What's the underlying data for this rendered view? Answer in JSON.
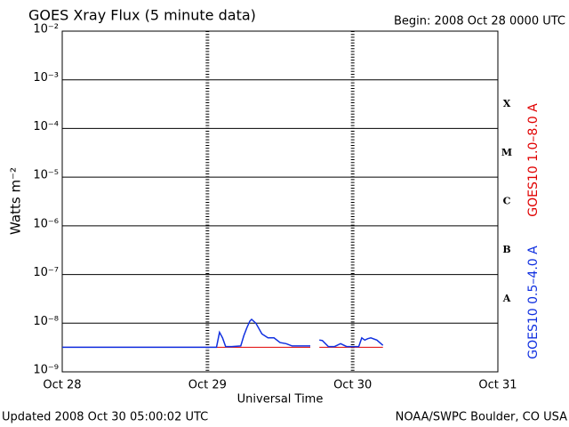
{
  "chart_data": {
    "type": "line",
    "title": "GOES Xray Flux (5 minute data)",
    "subtitle": "Begin:  2008 Oct 28 0000 UTC",
    "y_label": "Watts m⁻²",
    "x_label": "Universal Time",
    "footer_left": "Updated 2008 Oct 30 05:00:02 UTC",
    "footer_right": "NOAA/SWPC Boulder, CO USA",
    "class_labels": [
      "X",
      "M",
      "C",
      "B",
      "A"
    ],
    "log_y": true,
    "grid": true,
    "xlim": [
      0,
      72
    ],
    "xticks": [
      {
        "value": 0,
        "label": "Oct 28"
      },
      {
        "value": 24,
        "label": "Oct 29"
      },
      {
        "value": 48,
        "label": "Oct 30"
      },
      {
        "value": 72,
        "label": "Oct 31"
      }
    ],
    "ylim": [
      1e-09,
      0.01
    ],
    "yticks": [
      {
        "value": 1e-09,
        "label": "10⁻⁹"
      },
      {
        "value": 1e-08,
        "label": "10⁻⁸"
      },
      {
        "value": 1e-07,
        "label": "10⁻⁷"
      },
      {
        "value": 1e-06,
        "label": "10⁻⁶"
      },
      {
        "value": 1e-05,
        "label": "10⁻⁵"
      },
      {
        "value": 0.0001,
        "label": "10⁻⁴"
      },
      {
        "value": 0.001,
        "label": "10⁻³"
      },
      {
        "value": 0.01,
        "label": "10⁻²"
      }
    ],
    "x": [
      0,
      6,
      12,
      18,
      24,
      25.5,
      26,
      26.5,
      27,
      28,
      29.5,
      30,
      30.5,
      31,
      31.3,
      32,
      33,
      34,
      35,
      36,
      37,
      38,
      39,
      40,
      41,
      41.5,
      42.5,
      43,
      44,
      45,
      46,
      47,
      47.5,
      48,
      49,
      49.5,
      50,
      50.5,
      51,
      52,
      53
    ],
    "series": [
      {
        "name": "GOES10 1.0–8.0 A",
        "color": "#e00000",
        "values": [
          3.2e-09,
          3.2e-09,
          3.2e-09,
          3.2e-09,
          3.2e-09,
          3.2e-09,
          3.2e-09,
          3.2e-09,
          3.2e-09,
          3.2e-09,
          3.2e-09,
          3.2e-09,
          3.2e-09,
          3.2e-09,
          3.2e-09,
          3.2e-09,
          3.2e-09,
          3.2e-09,
          3.2e-09,
          3.2e-09,
          3.2e-09,
          3.2e-09,
          3.2e-09,
          3.2e-09,
          3.2e-09,
          null,
          3.2e-09,
          3.2e-09,
          3.2e-09,
          3.2e-09,
          3.2e-09,
          3.2e-09,
          3.2e-09,
          3.2e-09,
          3.2e-09,
          3.2e-09,
          3.2e-09,
          3.2e-09,
          3.2e-09,
          3.2e-09,
          3.2e-09
        ]
      },
      {
        "name": "GOES10 0.5–4.0 A",
        "color": "#1030e0",
        "values": [
          3.2e-09,
          3.2e-09,
          3.2e-09,
          3.2e-09,
          3.2e-09,
          3.2e-09,
          6.5e-09,
          5e-09,
          3.3e-09,
          3.3e-09,
          3.4e-09,
          5.5e-09,
          8e-09,
          1.1e-08,
          1.2e-08,
          1e-08,
          6e-09,
          5e-09,
          5e-09,
          4e-09,
          3.8e-09,
          3.4e-09,
          3.4e-09,
          3.4e-09,
          3.4e-09,
          null,
          4.5e-09,
          4.4e-09,
          3.3e-09,
          3.3e-09,
          3.8e-09,
          3.3e-09,
          3.3e-09,
          3.3e-09,
          3.3e-09,
          5e-09,
          4.5e-09,
          4.8e-09,
          5e-09,
          4.5e-09,
          3.5e-09
        ]
      }
    ]
  }
}
